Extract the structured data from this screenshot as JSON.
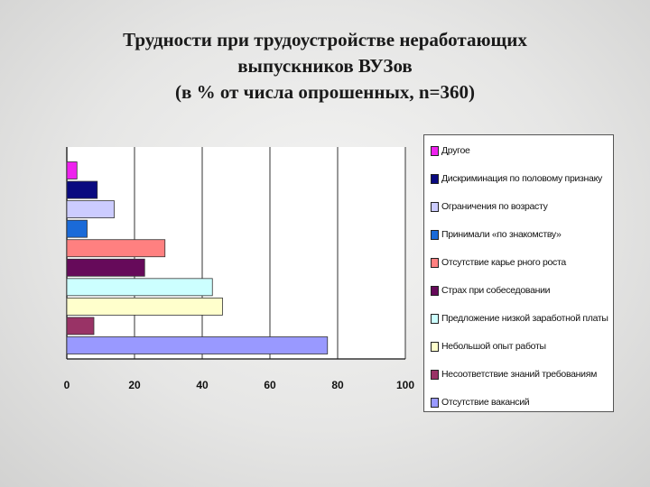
{
  "title_lines": [
    "Трудности при трудоустройстве неработающих",
    "выпускников ВУЗов",
    "(в % от числа опрошенных, n=360)"
  ],
  "chart_data": {
    "type": "bar",
    "orientation": "horizontal",
    "title": "Трудности при трудоустройстве неработающих выпускников ВУЗов (в % от числа опрошенных, n=360)",
    "xlim": [
      0,
      100
    ],
    "x_ticks": [
      "0",
      "20",
      "40",
      "60",
      "80",
      "100"
    ],
    "grid": true,
    "legend_position": "right",
    "series": [
      {
        "name": "Другое",
        "value": 3,
        "color": "#ee22ee"
      },
      {
        "name": "Дискриминация по половому признаку",
        "value": 9,
        "color": "#0a0a80"
      },
      {
        "name": "Ограничения по возрасту",
        "value": 14,
        "color": "#ccccff"
      },
      {
        "name": "Принимали «по знакомству»",
        "value": 6,
        "color": "#1a6ad8"
      },
      {
        "name": "Отсутствие карьерного роста",
        "value": 29,
        "color": "#ff8080"
      },
      {
        "name": "Страх при собеседовании",
        "value": 23,
        "color": "#660a5a"
      },
      {
        "name": "Предложение низкой заработной платы",
        "value": 43,
        "color": "#ccffff"
      },
      {
        "name": "Небольшой опыт работы",
        "value": 46,
        "color": "#ffffcc"
      },
      {
        "name": "Несоответствие знаний требованиям",
        "value": 8,
        "color": "#993366"
      },
      {
        "name": "Отсутствие вакансий",
        "value": 77,
        "color": "#9999ff"
      }
    ]
  },
  "legend_labels": [
    "Другое",
    "Дискриминация по половому признаку",
    "Ограничения по возрасту",
    "Принимали «по знакомству»",
    "Отсутствие карье рного роста",
    "Страх при собеседовании",
    "Предложение низкой заработной платы",
    "Небольшой опыт работы",
    "Несоответствие знаний требованиям",
    "Отсутствие вакансий"
  ]
}
